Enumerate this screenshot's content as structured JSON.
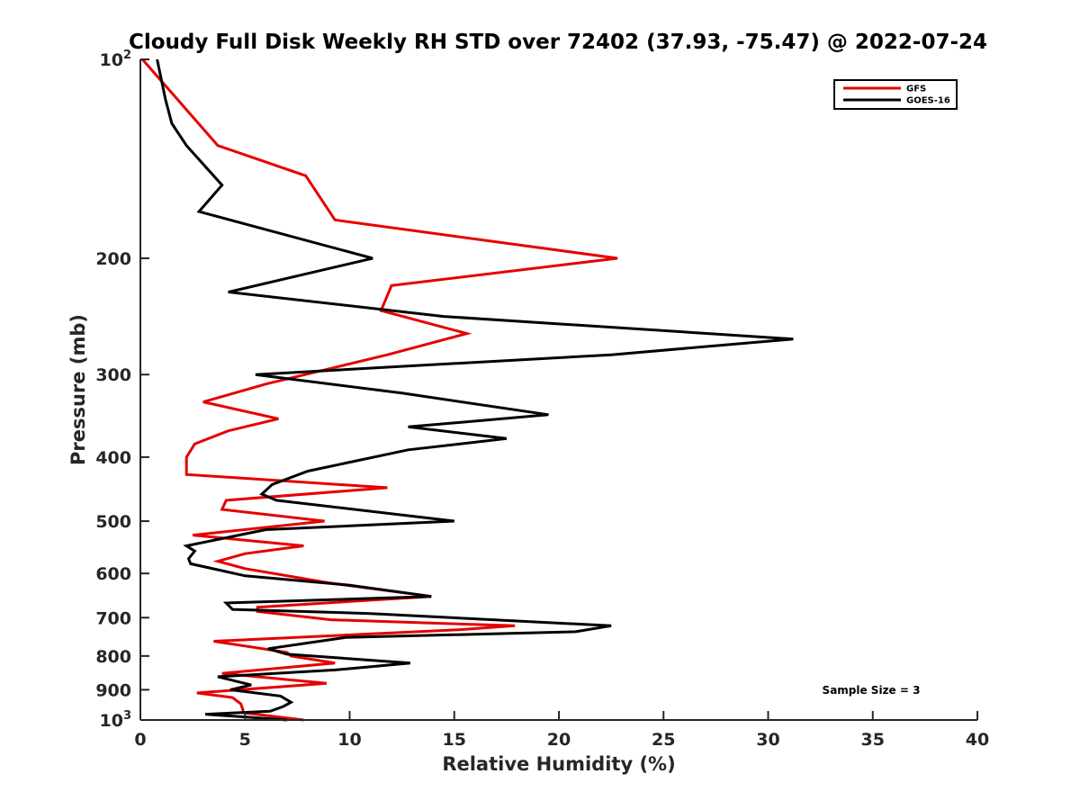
{
  "chart_data": {
    "type": "line",
    "title": "Cloudy Full Disk Weekly RH STD over 72402 (37.93, -75.47) @ 2022-07-24",
    "xlabel": "Relative Humidity (%)",
    "ylabel": "Pressure (mb)",
    "xlim": [
      0,
      40
    ],
    "ylim": [
      100,
      1000
    ],
    "yscale": "log",
    "y_reversed": true,
    "grid": false,
    "legend_position": "top-right",
    "x_ticks": [
      {
        "value": 0,
        "label": "0"
      },
      {
        "value": 5,
        "label": "5"
      },
      {
        "value": 10,
        "label": "10"
      },
      {
        "value": 15,
        "label": "15"
      },
      {
        "value": 20,
        "label": "20"
      },
      {
        "value": 25,
        "label": "25"
      },
      {
        "value": 30,
        "label": "30"
      },
      {
        "value": 35,
        "label": "35"
      },
      {
        "value": 40,
        "label": "40"
      }
    ],
    "y_ticks": [
      {
        "value": 100,
        "label": "10",
        "exponent": "2"
      },
      {
        "value": 200,
        "label": "200"
      },
      {
        "value": 300,
        "label": "300"
      },
      {
        "value": 400,
        "label": "400"
      },
      {
        "value": 500,
        "label": "500"
      },
      {
        "value": 600,
        "label": "600"
      },
      {
        "value": 700,
        "label": "700"
      },
      {
        "value": 800,
        "label": "800"
      },
      {
        "value": 900,
        "label": "900"
      },
      {
        "value": 1000,
        "label": "10",
        "exponent": "3"
      }
    ],
    "annotation": "Sample Size = 3",
    "series": [
      {
        "name": "GFS",
        "color": "#e60000",
        "points": [
          [
            0.1,
            100
          ],
          [
            3.7,
            135
          ],
          [
            7.9,
            150
          ],
          [
            9.3,
            175
          ],
          [
            22.8,
            200
          ],
          [
            12.0,
            220
          ],
          [
            11.5,
            240
          ],
          [
            15.6,
            260
          ],
          [
            11.8,
            280
          ],
          [
            6.0,
            310
          ],
          [
            3.0,
            330
          ],
          [
            6.6,
            350
          ],
          [
            4.2,
            365
          ],
          [
            2.6,
            382
          ],
          [
            2.2,
            400
          ],
          [
            2.2,
            425
          ],
          [
            11.8,
            445
          ],
          [
            4.1,
            465
          ],
          [
            3.9,
            480
          ],
          [
            8.8,
            500
          ],
          [
            2.5,
            525
          ],
          [
            7.8,
            545
          ],
          [
            5.0,
            560
          ],
          [
            3.7,
            575
          ],
          [
            5.0,
            590
          ],
          [
            9.0,
            620
          ],
          [
            13.9,
            650
          ],
          [
            5.6,
            675
          ],
          [
            5.6,
            685
          ],
          [
            9.1,
            705
          ],
          [
            17.9,
            720
          ],
          [
            15.2,
            730
          ],
          [
            3.5,
            760
          ],
          [
            7.0,
            790
          ],
          [
            7.2,
            800
          ],
          [
            9.3,
            820
          ],
          [
            3.9,
            850
          ],
          [
            8.9,
            880
          ],
          [
            2.7,
            910
          ],
          [
            4.4,
            925
          ],
          [
            4.8,
            945
          ],
          [
            4.9,
            965
          ],
          [
            4.9,
            975
          ],
          [
            7.8,
            1000
          ]
        ]
      },
      {
        "name": "GOES-16",
        "color": "#000000",
        "points": [
          [
            0.8,
            100
          ],
          [
            1.2,
            115
          ],
          [
            1.5,
            125
          ],
          [
            2.2,
            135
          ],
          [
            3.9,
            155
          ],
          [
            2.8,
            170
          ],
          [
            11.1,
            200
          ],
          [
            4.2,
            225
          ],
          [
            14.5,
            245
          ],
          [
            31.2,
            265
          ],
          [
            22.5,
            280
          ],
          [
            5.5,
            300
          ],
          [
            12.5,
            320
          ],
          [
            19.5,
            345
          ],
          [
            12.8,
            360
          ],
          [
            17.5,
            375
          ],
          [
            12.8,
            390
          ],
          [
            8.0,
            420
          ],
          [
            6.3,
            440
          ],
          [
            5.8,
            455
          ],
          [
            6.5,
            465
          ],
          [
            15.0,
            500
          ],
          [
            6.0,
            515
          ],
          [
            2.2,
            545
          ],
          [
            2.6,
            555
          ],
          [
            2.3,
            570
          ],
          [
            2.4,
            580
          ],
          [
            5.0,
            605
          ],
          [
            10.0,
            625
          ],
          [
            13.9,
            650
          ],
          [
            4.1,
            665
          ],
          [
            4.4,
            680
          ],
          [
            11.0,
            690
          ],
          [
            22.5,
            720
          ],
          [
            20.8,
            735
          ],
          [
            9.8,
            750
          ],
          [
            6.1,
            780
          ],
          [
            7.0,
            795
          ],
          [
            12.9,
            820
          ],
          [
            9.3,
            840
          ],
          [
            3.7,
            860
          ],
          [
            5.3,
            885
          ],
          [
            4.3,
            900
          ],
          [
            6.7,
            920
          ],
          [
            7.2,
            940
          ],
          [
            6.8,
            955
          ],
          [
            6.2,
            970
          ],
          [
            3.1,
            980
          ],
          [
            7.0,
            1000
          ]
        ]
      }
    ]
  }
}
